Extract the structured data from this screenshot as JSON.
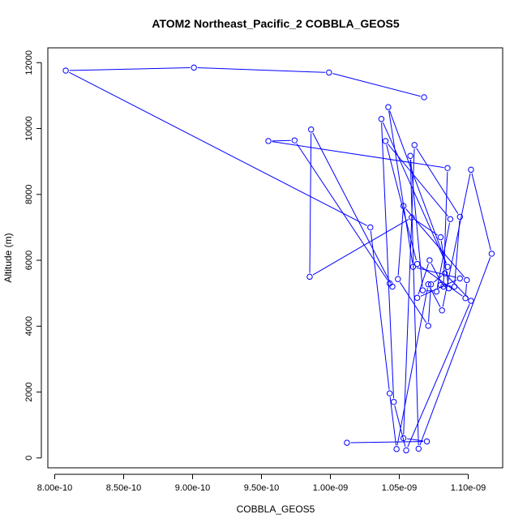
{
  "chart_data": {
    "type": "line",
    "title": "ATOM2 Northeast_Pacific_2 COBBLA_GEOS5",
    "xlabel": "COBBLA_GEOS5",
    "ylabel": "Altitude (m)",
    "xlim": [
      7.95e-10,
      1.125e-09
    ],
    "ylim": [
      -300,
      12450
    ],
    "xticks": [
      8e-10,
      8.5e-10,
      9e-10,
      9.5e-10,
      1e-09,
      1.05e-09,
      1.1e-09
    ],
    "xtick_labels": [
      "8.00e-10",
      "8.50e-10",
      "9.00e-10",
      "9.50e-10",
      "1.00e-09",
      "1.05e-09",
      "1.10e-09"
    ],
    "yticks": [
      0,
      2000,
      4000,
      6000,
      8000,
      10000,
      12000
    ],
    "ytick_labels": [
      "0",
      "2000",
      "4000",
      "6000",
      "8000",
      "10000",
      "12000"
    ],
    "grid": false,
    "series": [
      {
        "color": "#0000ff",
        "marker": "open-circle",
        "x": [
          1.068e-09,
          9.99e-10,
          9.01e-10,
          8.08e-10,
          1.029e-09,
          1.043e-09,
          1.048e-09,
          1.071e-09,
          1.081e-09,
          1.102e-09,
          1.117e-09,
          1.064e-09,
          1.058e-09,
          1.067e-09,
          1.077e-09,
          1.087e-09,
          1.04e-09,
          1.063e-09,
          1.098e-09,
          1.099e-09,
          1.053e-09,
          1.049e-09,
          1.071e-09,
          1.073e-09,
          1.083e-09,
          1.102e-09,
          1.055e-09,
          1.046e-09,
          1.037e-09,
          1.085e-09,
          1.042e-09,
          1.06e-09,
          1.094e-09,
          1.063e-09,
          1.072e-09,
          1.082e-09,
          1.085e-09,
          9.55e-10,
          9.74e-10,
          1.043e-09,
          1.045e-09,
          9.86e-10,
          9.85e-10,
          1.059e-09,
          1.08e-09,
          1.086e-09,
          1.08e-09,
          1.09e-09,
          1.094e-09,
          1.061e-09,
          1.053e-09,
          1.07e-09,
          1.012e-09
        ],
        "y": [
          10950,
          11700,
          11850,
          11760,
          7000,
          1960,
          270,
          5270,
          4480,
          8750,
          6200,
          280,
          9170,
          5090,
          5050,
          7250,
          9620,
          5890,
          4850,
          5400,
          7650,
          5430,
          4010,
          5270,
          5600,
          4770,
          230,
          1700,
          10290,
          5800,
          10650,
          5800,
          5450,
          4860,
          6000,
          5200,
          8800,
          9620,
          9640,
          5300,
          5200,
          9970,
          5500,
          7300,
          6700,
          5150,
          5250,
          5200,
          7320,
          9500,
          600,
          500,
          460
        ]
      }
    ]
  }
}
